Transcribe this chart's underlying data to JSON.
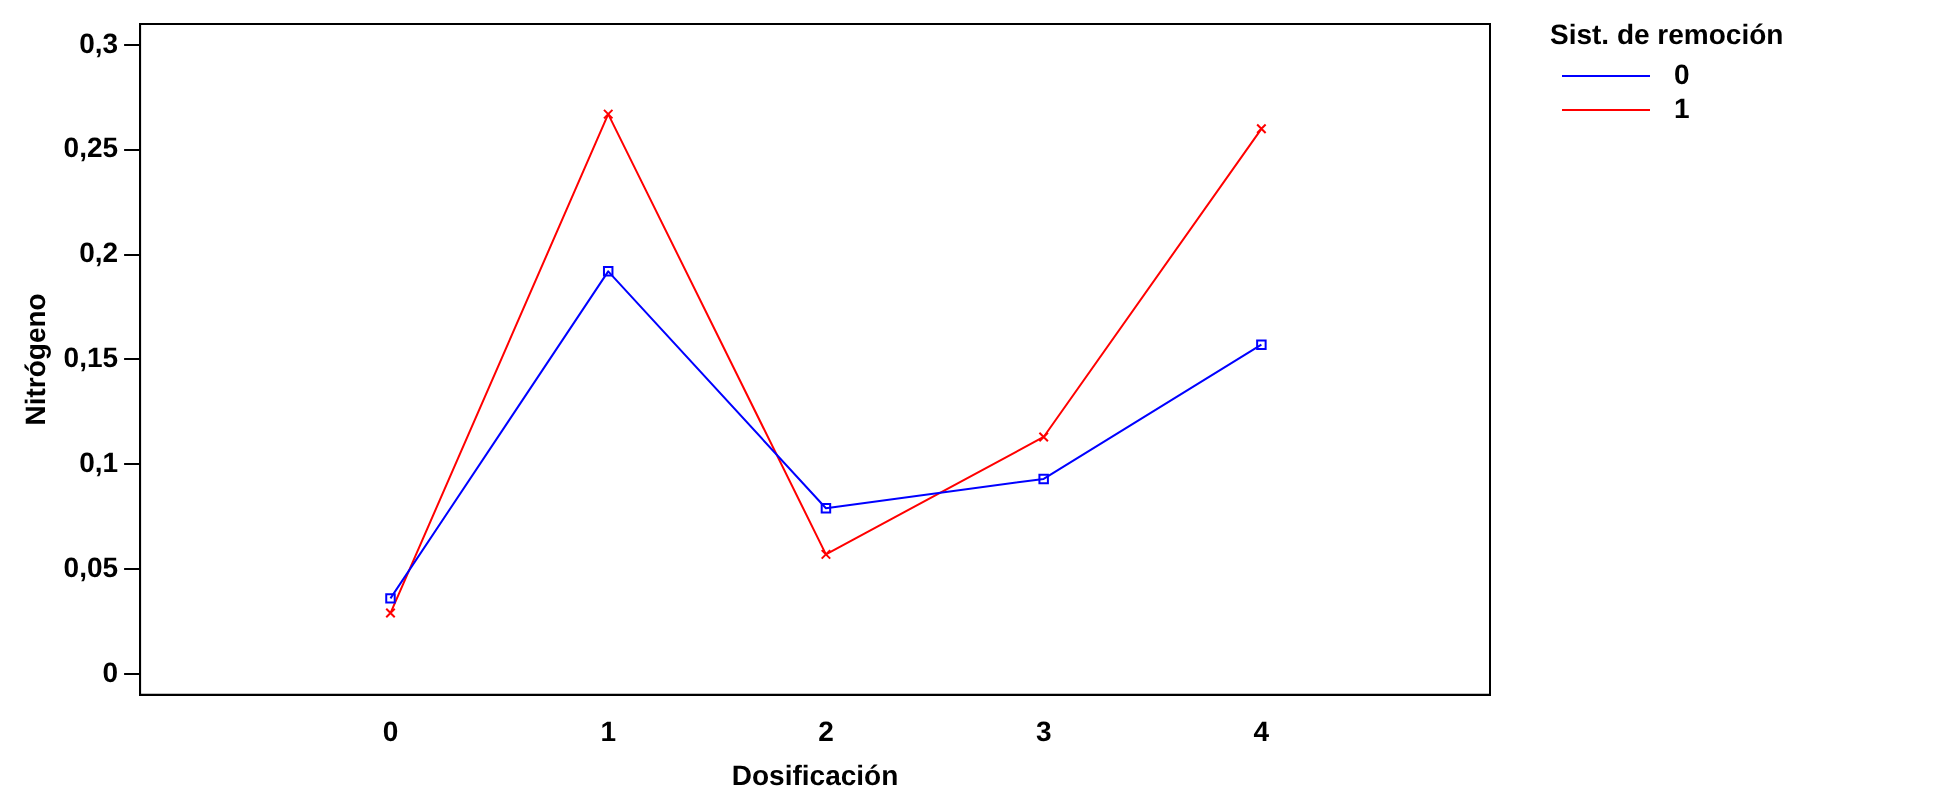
{
  "chart_data": {
    "type": "line",
    "xlabel": "Dosificación",
    "ylabel": "Nitrógeno",
    "legend_title": "Sist. de remoción",
    "legend": "top right",
    "grid": false,
    "line_style": "solid",
    "x": [
      0,
      1,
      2,
      3,
      4
    ],
    "xlim": [
      -1.15,
      5.05
    ],
    "xticks": [
      0,
      1,
      2,
      3,
      4
    ],
    "ylim": [
      -0.01,
      0.31
    ],
    "yticks": [
      0,
      {
        "value": 0.05,
        "label": "0,05"
      },
      {
        "value": 0.1,
        "label": "0,1"
      },
      {
        "value": 0.15,
        "label": "0,15"
      },
      {
        "value": 0.2,
        "label": "0,2"
      },
      {
        "value": 0.25,
        "label": "0,25"
      },
      {
        "value": 0.3,
        "label": "0,3"
      }
    ],
    "series": [
      {
        "name": "0",
        "color": "#0000ff",
        "marker": "square",
        "values": [
          0.036,
          0.192,
          0.079,
          0.093,
          0.157
        ]
      },
      {
        "name": "1",
        "color": "#ff0000",
        "marker": "cross",
        "values": [
          0.029,
          0.267,
          0.057,
          0.113,
          0.26
        ]
      }
    ]
  }
}
